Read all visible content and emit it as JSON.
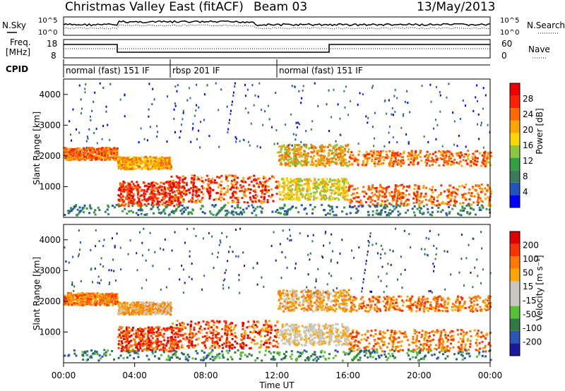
{
  "header": {
    "title": "Christmas Valley East (fitACF)",
    "beam": "Beam 03",
    "date": "13/May/2013"
  },
  "strips": {
    "nsky_label": "N.Sky",
    "nsearch_label": "N.Search",
    "freq_label_1": "Freq.",
    "freq_label_2": "[MHz]",
    "nave_label": "Nave",
    "cpid_label": "CPID",
    "noise_ticks_left": [
      "10^5",
      "10^0"
    ],
    "noise_ticks_right": [
      "10^5",
      "10^0"
    ],
    "freq_ticks_left": [
      "18",
      "8"
    ],
    "nave_ticks_right": [
      "60",
      "0"
    ]
  },
  "cpid_segments": [
    {
      "label": "normal (fast) 151 IF",
      "start_h": 0
    },
    {
      "label": "rbsp 201 IF",
      "start_h": 6
    },
    {
      "label": "normal (fast) 151 IF",
      "start_h": 12
    }
  ],
  "chart_data": [
    {
      "type": "heatmap",
      "name": "power",
      "ylabel": "Slant Range [km]",
      "yticks": [
        "4000",
        "3000",
        "2000",
        "1000"
      ],
      "colorbar_label": "Power [dB]",
      "colorbar_ticks": [
        "28",
        "24",
        "20",
        "16",
        "12",
        "8",
        "4"
      ],
      "colors": [
        "#0000ff",
        "#2255bb",
        "#3a7a5a",
        "#34a042",
        "#8ec63f",
        "#ffd700",
        "#ffa500",
        "#ff6a00",
        "#ff2200",
        "#ee0000"
      ],
      "ylim": [
        0,
        4500
      ]
    },
    {
      "type": "heatmap",
      "name": "velocity",
      "ylabel": "Slant Range [km]",
      "yticks": [
        "4000",
        "3000",
        "2000",
        "1000"
      ],
      "colorbar_label": "Velocity [m s⁻¹]",
      "colorbar_ticks": [
        "200",
        "100",
        "50",
        "15",
        "-15",
        "-50",
        "-100",
        "-200"
      ],
      "colors": [
        "#1a1aa0",
        "#2a55b0",
        "#2f7a44",
        "#55c233",
        "#c8c8c0",
        "#c8c8c0",
        "#ffa500",
        "#ff7a00",
        "#ff3300",
        "#e00000"
      ],
      "ylim": [
        0,
        4500
      ]
    }
  ],
  "time_axis": {
    "label": "Time UT",
    "ticks": [
      "00:00",
      "04:00",
      "08:00",
      "12:00",
      "16:00",
      "20:00",
      "00:00"
    ]
  }
}
